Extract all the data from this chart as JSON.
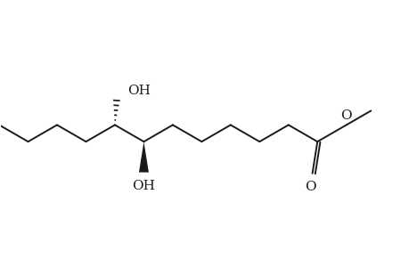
{
  "background": "#ffffff",
  "line_color": "#1a1a1a",
  "line_width": 1.4,
  "font_size": 10.5,
  "figsize": [
    4.6,
    3.0
  ],
  "dpi": 100,
  "xlim": [
    0,
    10
  ],
  "ylim": [
    0,
    6.5
  ]
}
